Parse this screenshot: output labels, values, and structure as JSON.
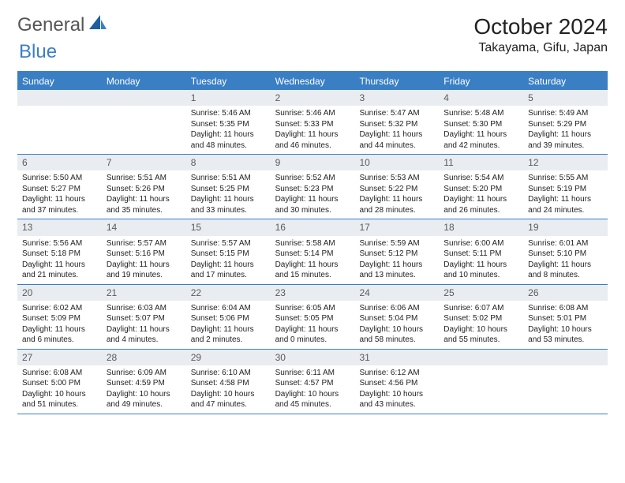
{
  "logo": {
    "text1": "General",
    "text2": "Blue"
  },
  "title": "October 2024",
  "location": "Takayama, Gifu, Japan",
  "colors": {
    "header_bg": "#3a7fc4",
    "daynum_bg": "#e9edf1",
    "text": "#222222",
    "logo_gray": "#555555",
    "logo_blue": "#3a7fc4"
  },
  "day_names": [
    "Sunday",
    "Monday",
    "Tuesday",
    "Wednesday",
    "Thursday",
    "Friday",
    "Saturday"
  ],
  "weeks": [
    [
      null,
      null,
      {
        "n": "1",
        "sr": "5:46 AM",
        "ss": "5:35 PM",
        "dl": "11 hours and 48 minutes."
      },
      {
        "n": "2",
        "sr": "5:46 AM",
        "ss": "5:33 PM",
        "dl": "11 hours and 46 minutes."
      },
      {
        "n": "3",
        "sr": "5:47 AM",
        "ss": "5:32 PM",
        "dl": "11 hours and 44 minutes."
      },
      {
        "n": "4",
        "sr": "5:48 AM",
        "ss": "5:30 PM",
        "dl": "11 hours and 42 minutes."
      },
      {
        "n": "5",
        "sr": "5:49 AM",
        "ss": "5:29 PM",
        "dl": "11 hours and 39 minutes."
      }
    ],
    [
      {
        "n": "6",
        "sr": "5:50 AM",
        "ss": "5:27 PM",
        "dl": "11 hours and 37 minutes."
      },
      {
        "n": "7",
        "sr": "5:51 AM",
        "ss": "5:26 PM",
        "dl": "11 hours and 35 minutes."
      },
      {
        "n": "8",
        "sr": "5:51 AM",
        "ss": "5:25 PM",
        "dl": "11 hours and 33 minutes."
      },
      {
        "n": "9",
        "sr": "5:52 AM",
        "ss": "5:23 PM",
        "dl": "11 hours and 30 minutes."
      },
      {
        "n": "10",
        "sr": "5:53 AM",
        "ss": "5:22 PM",
        "dl": "11 hours and 28 minutes."
      },
      {
        "n": "11",
        "sr": "5:54 AM",
        "ss": "5:20 PM",
        "dl": "11 hours and 26 minutes."
      },
      {
        "n": "12",
        "sr": "5:55 AM",
        "ss": "5:19 PM",
        "dl": "11 hours and 24 minutes."
      }
    ],
    [
      {
        "n": "13",
        "sr": "5:56 AM",
        "ss": "5:18 PM",
        "dl": "11 hours and 21 minutes."
      },
      {
        "n": "14",
        "sr": "5:57 AM",
        "ss": "5:16 PM",
        "dl": "11 hours and 19 minutes."
      },
      {
        "n": "15",
        "sr": "5:57 AM",
        "ss": "5:15 PM",
        "dl": "11 hours and 17 minutes."
      },
      {
        "n": "16",
        "sr": "5:58 AM",
        "ss": "5:14 PM",
        "dl": "11 hours and 15 minutes."
      },
      {
        "n": "17",
        "sr": "5:59 AM",
        "ss": "5:12 PM",
        "dl": "11 hours and 13 minutes."
      },
      {
        "n": "18",
        "sr": "6:00 AM",
        "ss": "5:11 PM",
        "dl": "11 hours and 10 minutes."
      },
      {
        "n": "19",
        "sr": "6:01 AM",
        "ss": "5:10 PM",
        "dl": "11 hours and 8 minutes."
      }
    ],
    [
      {
        "n": "20",
        "sr": "6:02 AM",
        "ss": "5:09 PM",
        "dl": "11 hours and 6 minutes."
      },
      {
        "n": "21",
        "sr": "6:03 AM",
        "ss": "5:07 PM",
        "dl": "11 hours and 4 minutes."
      },
      {
        "n": "22",
        "sr": "6:04 AM",
        "ss": "5:06 PM",
        "dl": "11 hours and 2 minutes."
      },
      {
        "n": "23",
        "sr": "6:05 AM",
        "ss": "5:05 PM",
        "dl": "11 hours and 0 minutes."
      },
      {
        "n": "24",
        "sr": "6:06 AM",
        "ss": "5:04 PM",
        "dl": "10 hours and 58 minutes."
      },
      {
        "n": "25",
        "sr": "6:07 AM",
        "ss": "5:02 PM",
        "dl": "10 hours and 55 minutes."
      },
      {
        "n": "26",
        "sr": "6:08 AM",
        "ss": "5:01 PM",
        "dl": "10 hours and 53 minutes."
      }
    ],
    [
      {
        "n": "27",
        "sr": "6:08 AM",
        "ss": "5:00 PM",
        "dl": "10 hours and 51 minutes."
      },
      {
        "n": "28",
        "sr": "6:09 AM",
        "ss": "4:59 PM",
        "dl": "10 hours and 49 minutes."
      },
      {
        "n": "29",
        "sr": "6:10 AM",
        "ss": "4:58 PM",
        "dl": "10 hours and 47 minutes."
      },
      {
        "n": "30",
        "sr": "6:11 AM",
        "ss": "4:57 PM",
        "dl": "10 hours and 45 minutes."
      },
      {
        "n": "31",
        "sr": "6:12 AM",
        "ss": "4:56 PM",
        "dl": "10 hours and 43 minutes."
      },
      null,
      null
    ]
  ],
  "labels": {
    "sunrise": "Sunrise:",
    "sunset": "Sunset:",
    "daylight": "Daylight:"
  }
}
